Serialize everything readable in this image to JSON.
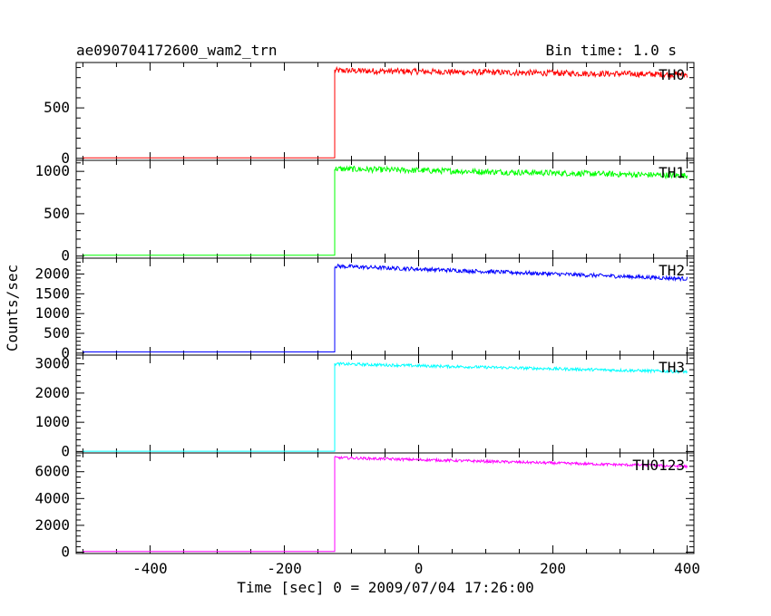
{
  "chart_data": {
    "type": "line",
    "title": "ae090704172600_wam2_trn",
    "bin_label": "Bin time: 1.0 s",
    "xlabel": "Time [sec] 0 = 2009/07/04 17:26:00",
    "ylabel": "Counts/sec",
    "xlim": [
      -510,
      410
    ],
    "xticks": [
      -400,
      -200,
      0,
      200,
      400
    ],
    "grid": false,
    "trigger_time": -125,
    "data_start": -500,
    "data_end": 400,
    "panels": [
      {
        "name": "TH0",
        "color": "#ff0000",
        "ylim": [
          -20,
          950
        ],
        "yticks": [
          0,
          500
        ],
        "pre_level": 5,
        "start_level": 870,
        "end_level": 830,
        "noise": 30
      },
      {
        "name": "TH1",
        "color": "#00ff00",
        "ylim": [
          -25,
          1130
        ],
        "yticks": [
          0,
          500,
          1000
        ],
        "pre_level": 10,
        "start_level": 1030,
        "end_level": 950,
        "noise": 35
      },
      {
        "name": "TH2",
        "color": "#0000ff",
        "ylim": [
          -50,
          2400
        ],
        "yticks": [
          0,
          500,
          1000,
          1500,
          2000
        ],
        "pre_level": 30,
        "start_level": 2200,
        "end_level": 1880,
        "noise": 50
      },
      {
        "name": "TH3",
        "color": "#00ffff",
        "ylim": [
          -50,
          3300
        ],
        "yticks": [
          0,
          1000,
          2000,
          3000
        ],
        "pre_level": 10,
        "start_level": 3000,
        "end_level": 2730,
        "noise": 50
      },
      {
        "name": "TH0123",
        "color": "#ff00ff",
        "ylim": [
          -100,
          7400
        ],
        "yticks": [
          0,
          2000,
          4000,
          6000
        ],
        "pre_level": 50,
        "start_level": 7050,
        "end_level": 6400,
        "noise": 100
      }
    ]
  }
}
